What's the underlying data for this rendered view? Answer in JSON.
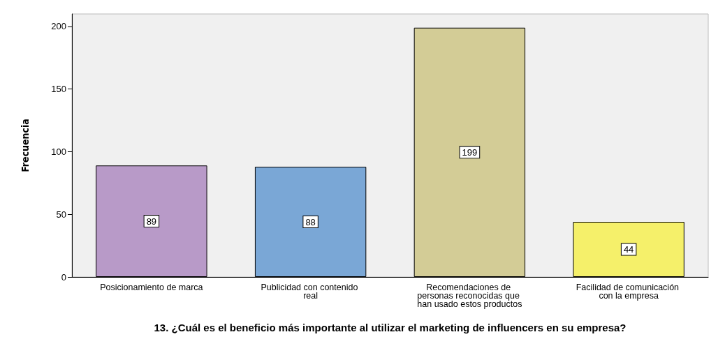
{
  "chart_data": {
    "type": "bar",
    "xlabel": "13. ¿Cuál es el beneficio más importante al utilizar el marketing de influencers en su empresa?",
    "ylabel": "Frecuencia",
    "categories": [
      "Posicionamiento de marca",
      "Publicidad con contenido real",
      "Recomendaciones de personas reconocidas que han usado estos productos",
      "Facilidad de comunicación con la empresa"
    ],
    "values": [
      89,
      88,
      199,
      44
    ],
    "colors": [
      "#b89ac8",
      "#7aa7d6",
      "#d3cc96",
      "#f5f06a"
    ],
    "ylim": [
      0,
      210
    ],
    "yticks": [
      0,
      50,
      100,
      150,
      200
    ],
    "grid": false,
    "data_labels": true
  }
}
